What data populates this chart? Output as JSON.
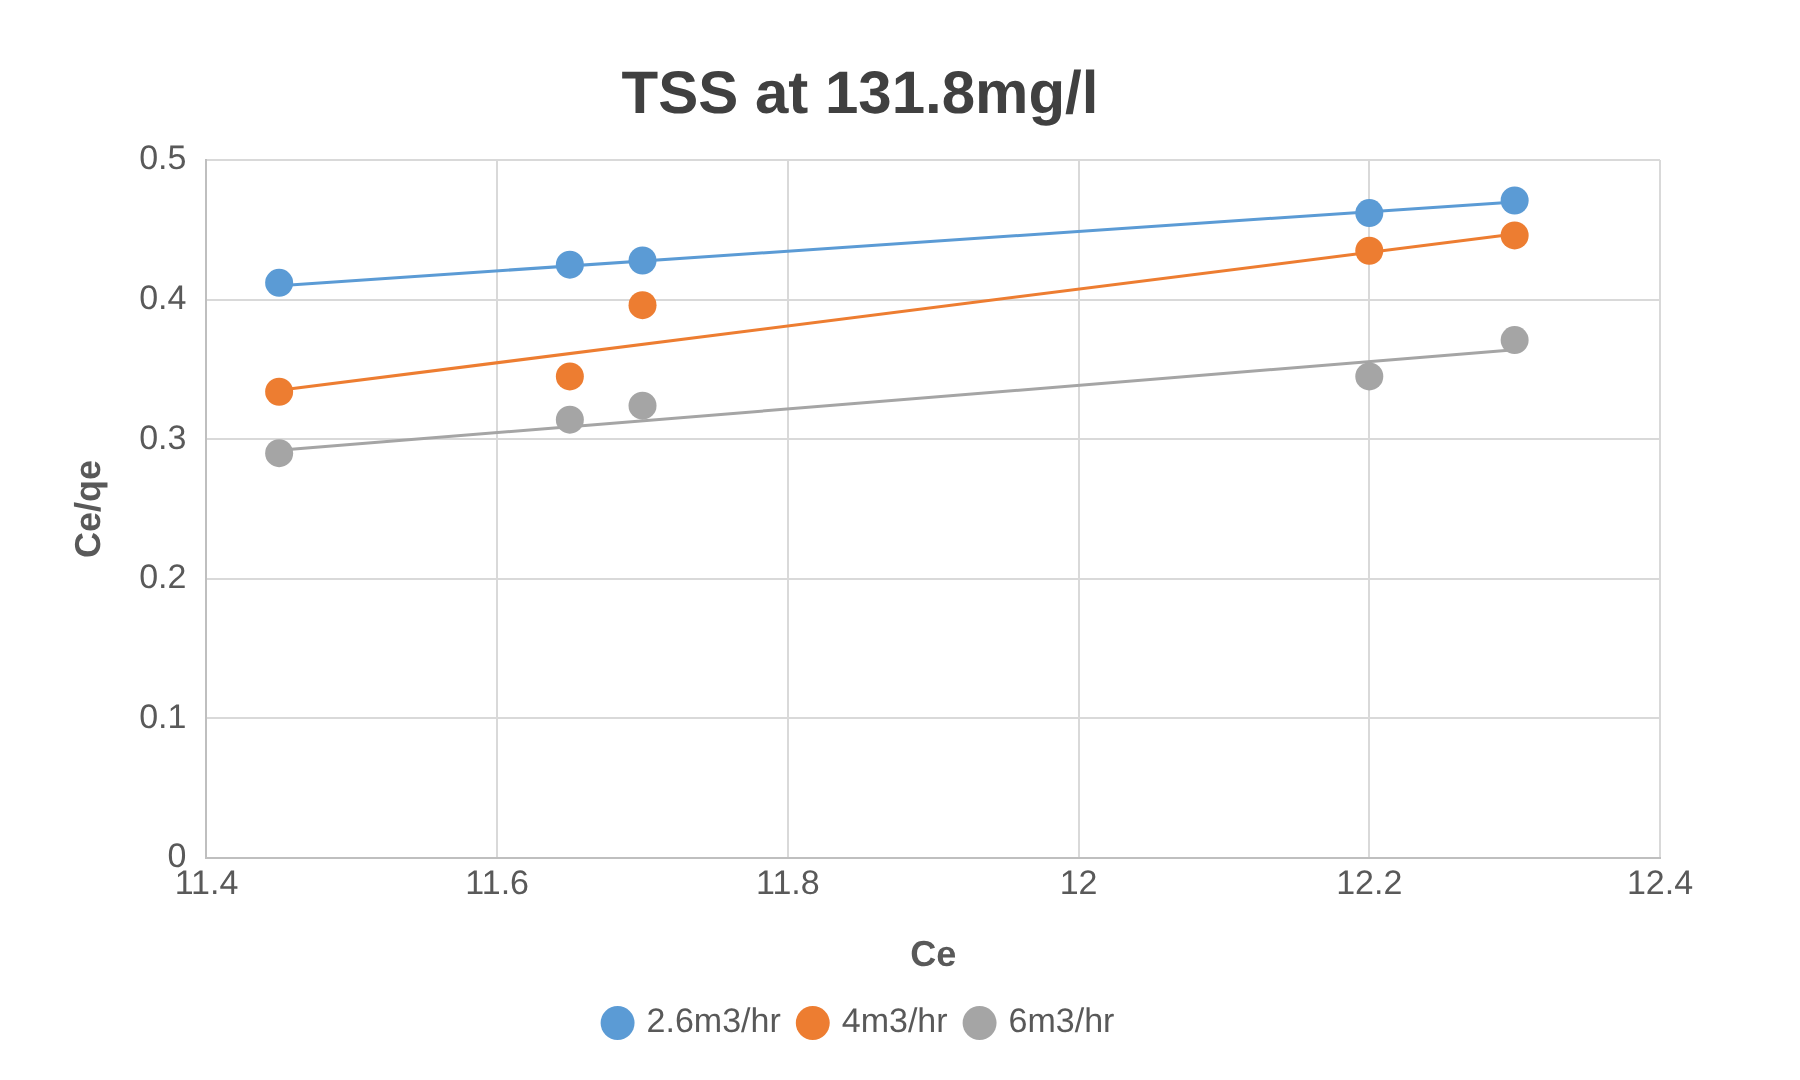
{
  "chart_data": {
    "type": "scatter",
    "title": "TSS at 131.8mg/l",
    "xlabel": "Ce",
    "ylabel": "Ce/qe",
    "xlim": [
      11.4,
      12.4
    ],
    "xticks": [
      11.4,
      11.6,
      11.8,
      12,
      12.2,
      12.4
    ],
    "ylim": [
      0,
      0.5
    ],
    "yticks": [
      0,
      0.1,
      0.2,
      0.3,
      0.4,
      0.5
    ],
    "grid": true,
    "legend": "bottom",
    "marker": "circle",
    "series": [
      {
        "name": "2.6m3/hr",
        "color": "#5b9bd5",
        "x": [
          11.45,
          11.65,
          11.7,
          12.2,
          12.3
        ],
        "values": [
          0.412,
          0.425,
          0.428,
          0.462,
          0.471
        ]
      },
      {
        "name": "4m3/hr",
        "color": "#ed7d31",
        "x": [
          11.45,
          11.65,
          11.7,
          12.2,
          12.3
        ],
        "values": [
          0.334,
          0.345,
          0.396,
          0.435,
          0.446
        ]
      },
      {
        "name": "6m3/hr",
        "color": "#a5a5a5",
        "x": [
          11.45,
          11.65,
          11.7,
          12.2,
          12.3
        ],
        "values": [
          0.29,
          0.314,
          0.324,
          0.345,
          0.371
        ]
      },
      {
        "type": "line",
        "marker": "none",
        "color": "#5b9bd5",
        "x": [
          11.45,
          12.3
        ],
        "values": [
          0.41,
          0.47
        ]
      },
      {
        "type": "line",
        "marker": "none",
        "color": "#ed7d31",
        "x": [
          11.45,
          12.3
        ],
        "values": [
          0.335,
          0.447
        ]
      },
      {
        "type": "line",
        "marker": "none",
        "color": "#a5a5a5",
        "x": [
          11.45,
          12.3
        ],
        "values": [
          0.292,
          0.364
        ]
      }
    ]
  }
}
